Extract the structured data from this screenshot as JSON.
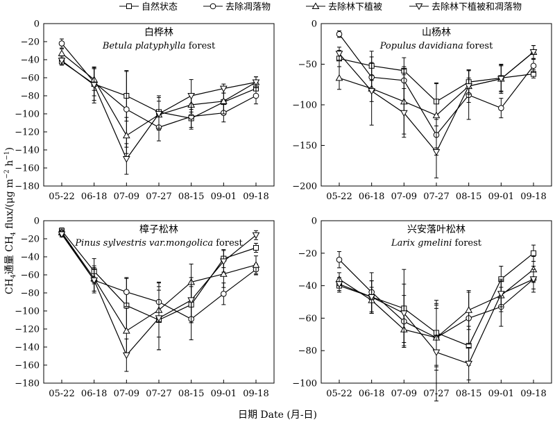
{
  "chart_data": {
    "type": "line",
    "xlabel": "日期 Date (月-日)",
    "ylabel_prefix": "CH",
    "ylabel_sub": "4",
    "ylabel_middle": "通量 CH",
    "ylabel_sub2": "4",
    "ylabel_after": " flux/(μg m",
    "ylabel_sup1": "−2",
    "ylabel_mid2": " h",
    "ylabel_sup2": "−1",
    "ylabel_end": ")",
    "legend": [
      {
        "name": "自然状态",
        "marker": "square"
      },
      {
        "name": "去除凋落物",
        "marker": "circle"
      },
      {
        "name": "去除林下植被",
        "marker": "triangle-up"
      },
      {
        "name": "去除林下植被和凋落物",
        "marker": "triangle-down"
      }
    ],
    "categories": [
      "05-22",
      "06-18",
      "07-09",
      "07-27",
      "08-15",
      "09-01",
      "09-18"
    ],
    "panels": [
      {
        "title_cn": "白桦林",
        "title_latin": "Betula platyphylla",
        "title_suffix": " forest",
        "ylim": [
          -180,
          0
        ],
        "yticks": [
          -180,
          -160,
          -140,
          -120,
          -100,
          -80,
          -60,
          -40,
          -20,
          0
        ],
        "series": [
          {
            "values": [
              -42,
              -67,
              -80,
              -98,
              -105,
              -87,
              -72
            ],
            "err": [
              4,
              18,
              28,
              18,
              10,
              10,
              8
            ]
          },
          {
            "values": [
              -22,
              -65,
              -95,
              -115,
              -103,
              -99,
              -80
            ],
            "err": [
              5,
              15,
              42,
              15,
              14,
              10,
              9
            ]
          },
          {
            "values": [
              -33,
              -62,
              -124,
              -101,
              -90,
              -86,
              -65
            ],
            "err": [
              5,
              12,
              20,
              15,
              12,
              14,
              6
            ]
          },
          {
            "values": [
              -41,
              -68,
              -150,
              -100,
              -80,
              -72,
              -65
            ],
            "err": [
              5,
              20,
              17,
              18,
              18,
              5,
              6
            ]
          }
        ]
      },
      {
        "title_cn": "山杨林",
        "title_latin": "Populus davidiana",
        "title_suffix": " forest",
        "ylim": [
          -200,
          0
        ],
        "yticks": [
          -200,
          -150,
          -100,
          -50,
          0
        ],
        "series": [
          {
            "values": [
              -43,
              -52,
              -58,
              -96,
              -72,
              -67,
              -62
            ],
            "err": [
              10,
              18,
              5,
              22,
              15,
              16,
              5
            ]
          },
          {
            "values": [
              -13,
              -66,
              -70,
              -137,
              -88,
              -104,
              -52
            ],
            "err": [
              4,
              18,
              28,
              25,
              30,
              12,
              8
            ]
          },
          {
            "values": [
              -67,
              -80,
              -96,
              -113,
              -77,
              -68,
              -35
            ],
            "err": [
              14,
              16,
              40,
              40,
              10,
              18,
              8
            ]
          },
          {
            "values": [
              -37,
              -83,
              -110,
              -158,
              -77,
              -68,
              -35
            ],
            "err": [
              8,
              42,
              30,
              32,
              20,
              16,
              8
            ]
          }
        ]
      },
      {
        "title_cn": "樟子松林",
        "title_latin": "Pinus sylvestris var.mongolica",
        "title_suffix": " forest",
        "ylim": [
          -180,
          0
        ],
        "yticks": [
          -180,
          -160,
          -140,
          -120,
          -100,
          -80,
          -60,
          -40,
          -20,
          0
        ],
        "series": [
          {
            "values": [
              -11,
              -56,
              -94,
              -110,
              -93,
              -42,
              -30
            ],
            "err": [
              3,
              14,
              30,
              33,
              20,
              10,
              5
            ]
          },
          {
            "values": [
              -14,
              -66,
              -79,
              -90,
              -109,
              -81,
              -54
            ],
            "err": [
              3,
              14,
              16,
              22,
              23,
              12,
              6
            ]
          },
          {
            "values": [
              -13,
              -64,
              -122,
              -99,
              -68,
              -59,
              -49
            ],
            "err": [
              3,
              14,
              25,
              30,
              20,
              15,
              10
            ]
          },
          {
            "values": [
              -15,
              -66,
              -149,
              -108,
              -88,
              -45,
              -16
            ],
            "err": [
              3,
              12,
              18,
              35,
              25,
              12,
              5
            ]
          }
        ]
      },
      {
        "title_cn": "兴安落叶松林",
        "title_latin": "Larix gmelini",
        "title_suffix": " forest",
        "ylim": [
          -100,
          0
        ],
        "yticks": [
          -100,
          -80,
          -60,
          -40,
          -20,
          0
        ],
        "series": [
          {
            "values": [
              -40,
              -47,
              -54,
              -69,
              -77,
              -36,
              -20
            ],
            "err": [
              4,
              10,
              24,
              20,
              12,
              8,
              5
            ]
          },
          {
            "values": [
              -24,
              -44,
              -62,
              -72,
              -60,
              -53,
              -36
            ],
            "err": [
              5,
              12,
              16,
              18,
              16,
              12,
              8
            ]
          },
          {
            "values": [
              -36,
              -49,
              -67,
              -72,
              -55,
              -46,
              -30
            ],
            "err": [
              4,
              8,
              10,
              20,
              12,
              10,
              8
            ]
          },
          {
            "values": [
              -39,
              -47,
              -57,
              -81,
              -88,
              -45,
              -36
            ],
            "err": [
              4,
              10,
              18,
              30,
              10,
              8,
              6
            ]
          }
        ]
      }
    ]
  }
}
